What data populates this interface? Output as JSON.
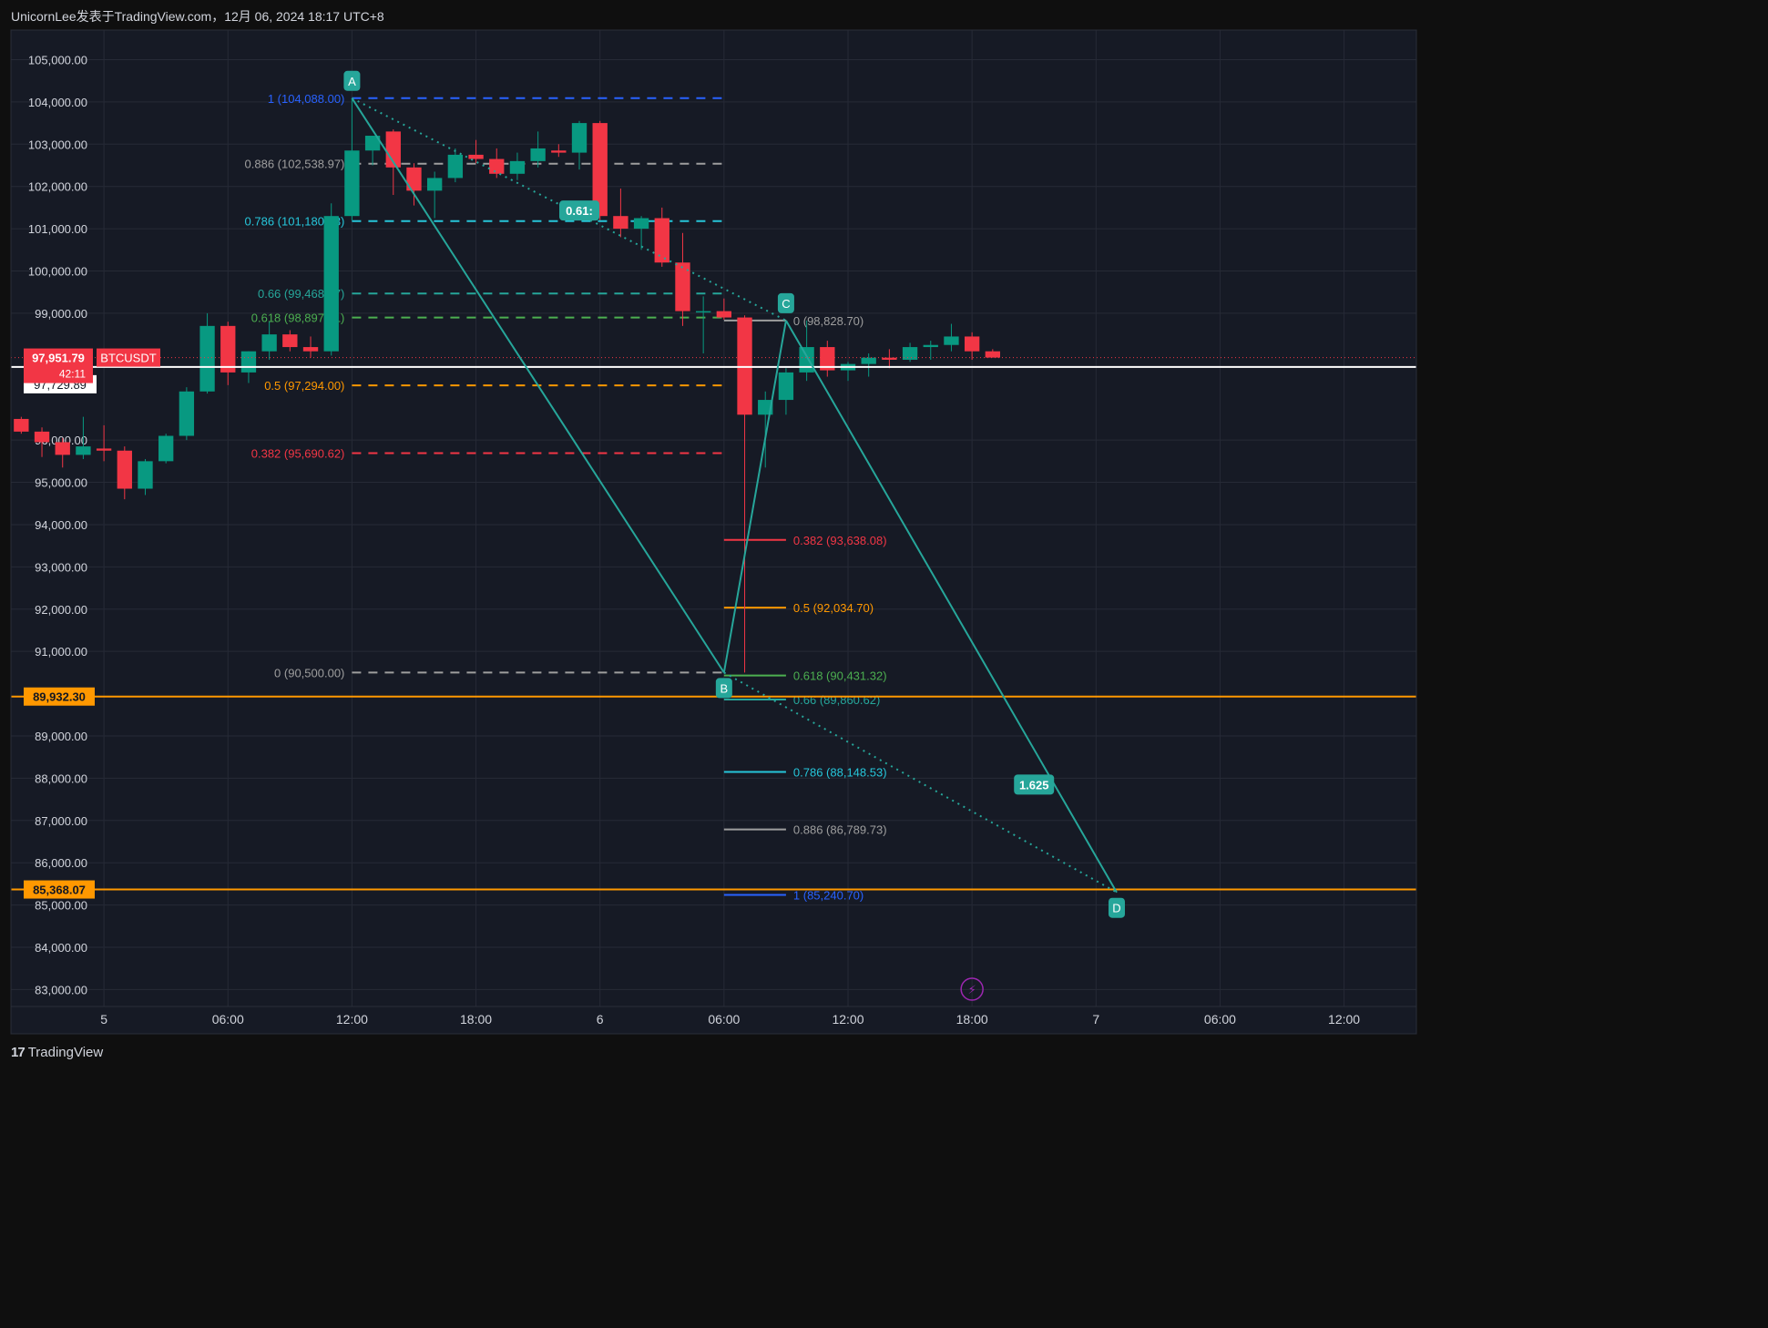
{
  "header": {
    "text": "UnicornLee发表于TradingView.com，12月 06, 2024 18:17 UTC+8"
  },
  "footer": {
    "brand": "TradingView",
    "logo_glyph": "17"
  },
  "colors": {
    "background": "#161a25",
    "grid": "#262a36",
    "up": "#089981",
    "down": "#f23645",
    "pattern": "#26a69a",
    "axis_text": "#d1d4dc",
    "price_line": "#ffffff",
    "horizontal_line": "#ff9800"
  },
  "chart_data": {
    "type": "candlestick",
    "symbol": "BTCUSDT",
    "y_ticks": [
      105000,
      104000,
      103000,
      102000,
      101000,
      100000,
      99000,
      96000,
      95000,
      94000,
      93000,
      92000,
      91000,
      89000,
      88000,
      87000,
      86000,
      85000,
      84000,
      83000
    ],
    "y_tick_labels": [
      "105,000.00",
      "104,000.00",
      "103,000.00",
      "102,000.00",
      "101,000.00",
      "100,000.00",
      "99,000.00",
      "96,000.00",
      "95,000.00",
      "94,000.00",
      "93,000.00",
      "92,000.00",
      "91,000.00",
      "89,000.00",
      "88,000.00",
      "87,000.00",
      "86,000.00",
      "85,000.00",
      "84,000.00",
      "83,000.00"
    ],
    "ylim": [
      82600,
      105700
    ],
    "x_ticks": [
      {
        "label": "5",
        "time": "2024-12-05 00:00"
      },
      {
        "label": "06:00",
        "time": "2024-12-05 06:00"
      },
      {
        "label": "12:00",
        "time": "2024-12-05 12:00"
      },
      {
        "label": "18:00",
        "time": "2024-12-05 18:00"
      },
      {
        "label": "6",
        "time": "2024-12-06 00:00"
      },
      {
        "label": "06:00",
        "time": "2024-12-06 06:00"
      },
      {
        "label": "12:00",
        "time": "2024-12-06 12:00"
      },
      {
        "label": "18:00",
        "time": "2024-12-06 18:00"
      },
      {
        "label": "7",
        "time": "2024-12-07 00:00"
      },
      {
        "label": "06:00",
        "time": "2024-12-07 06:00"
      },
      {
        "label": "12:00",
        "time": "2024-12-07 12:00"
      }
    ],
    "xlim": [
      "2024-12-04 19:30",
      "2024-12-07 15:30"
    ],
    "candle_interval_hours": 1,
    "candles": [
      {
        "t": "2024-12-04 20:00",
        "o": 96500,
        "h": 96550,
        "l": 96150,
        "c": 96200
      },
      {
        "t": "2024-12-04 21:00",
        "o": 96200,
        "h": 96300,
        "l": 95600,
        "c": 95950
      },
      {
        "t": "2024-12-04 22:00",
        "o": 95950,
        "h": 96050,
        "l": 95350,
        "c": 95650
      },
      {
        "t": "2024-12-04 23:00",
        "o": 95650,
        "h": 96550,
        "l": 95550,
        "c": 95850
      },
      {
        "t": "2024-12-05 00:00",
        "o": 95800,
        "h": 96350,
        "l": 95500,
        "c": 95750
      },
      {
        "t": "2024-12-05 01:00",
        "o": 95750,
        "h": 95850,
        "l": 94600,
        "c": 94850
      },
      {
        "t": "2024-12-05 02:00",
        "o": 94850,
        "h": 95550,
        "l": 94700,
        "c": 95500
      },
      {
        "t": "2024-12-05 03:00",
        "o": 95500,
        "h": 96150,
        "l": 95450,
        "c": 96100
      },
      {
        "t": "2024-12-05 04:00",
        "o": 96100,
        "h": 97250,
        "l": 96000,
        "c": 97150
      },
      {
        "t": "2024-12-05 05:00",
        "o": 97150,
        "h": 99000,
        "l": 97100,
        "c": 98700
      },
      {
        "t": "2024-12-05 06:00",
        "o": 98700,
        "h": 98800,
        "l": 97300,
        "c": 97600
      },
      {
        "t": "2024-12-05 07:00",
        "o": 97600,
        "h": 98100,
        "l": 97350,
        "c": 98100
      },
      {
        "t": "2024-12-05 08:00",
        "o": 98100,
        "h": 98800,
        "l": 97900,
        "c": 98500
      },
      {
        "t": "2024-12-05 09:00",
        "o": 98500,
        "h": 98600,
        "l": 98100,
        "c": 98200
      },
      {
        "t": "2024-12-05 10:00",
        "o": 98200,
        "h": 98450,
        "l": 97950,
        "c": 98100
      },
      {
        "t": "2024-12-05 11:00",
        "o": 98100,
        "h": 101600,
        "l": 98000,
        "c": 101300
      },
      {
        "t": "2024-12-05 12:00",
        "o": 101300,
        "h": 104088,
        "l": 101200,
        "c": 102850
      },
      {
        "t": "2024-12-05 13:00",
        "o": 102850,
        "h": 103200,
        "l": 102500,
        "c": 103200
      },
      {
        "t": "2024-12-05 14:00",
        "o": 103300,
        "h": 103350,
        "l": 101800,
        "c": 102450
      },
      {
        "t": "2024-12-05 15:00",
        "o": 102450,
        "h": 102550,
        "l": 101550,
        "c": 101900
      },
      {
        "t": "2024-12-05 16:00",
        "o": 101900,
        "h": 102350,
        "l": 101250,
        "c": 102200
      },
      {
        "t": "2024-12-05 17:00",
        "o": 102200,
        "h": 102900,
        "l": 102100,
        "c": 102750
      },
      {
        "t": "2024-12-05 18:00",
        "o": 102750,
        "h": 103100,
        "l": 102550,
        "c": 102650
      },
      {
        "t": "2024-12-05 19:00",
        "o": 102650,
        "h": 102900,
        "l": 102200,
        "c": 102300
      },
      {
        "t": "2024-12-05 20:00",
        "o": 102300,
        "h": 102800,
        "l": 102150,
        "c": 102600
      },
      {
        "t": "2024-12-05 21:00",
        "o": 102600,
        "h": 103300,
        "l": 102450,
        "c": 102900
      },
      {
        "t": "2024-12-05 22:00",
        "o": 102850,
        "h": 103000,
        "l": 102700,
        "c": 102800
      },
      {
        "t": "2024-12-05 23:00",
        "o": 102800,
        "h": 103550,
        "l": 102400,
        "c": 103500
      },
      {
        "t": "2024-12-06 00:00",
        "o": 103500,
        "h": 103550,
        "l": 101200,
        "c": 101300
      },
      {
        "t": "2024-12-06 01:00",
        "o": 101300,
        "h": 101950,
        "l": 100800,
        "c": 101000
      },
      {
        "t": "2024-12-06 02:00",
        "o": 101000,
        "h": 101300,
        "l": 100500,
        "c": 101250
      },
      {
        "t": "2024-12-06 03:00",
        "o": 101250,
        "h": 101500,
        "l": 100100,
        "c": 100200
      },
      {
        "t": "2024-12-06 04:00",
        "o": 100200,
        "h": 100900,
        "l": 98700,
        "c": 99050
      },
      {
        "t": "2024-12-06 05:00",
        "o": 99050,
        "h": 99400,
        "l": 98050,
        "c": 99050
      },
      {
        "t": "2024-12-06 06:00",
        "o": 99050,
        "h": 99350,
        "l": 98850,
        "c": 98900
      },
      {
        "t": "2024-12-06 07:00",
        "o": 98900,
        "h": 98950,
        "l": 90500,
        "c": 96600
      },
      {
        "t": "2024-12-06 08:00",
        "o": 96600,
        "h": 97150,
        "l": 95350,
        "c": 96950
      },
      {
        "t": "2024-12-06 09:00",
        "o": 96950,
        "h": 97700,
        "l": 96600,
        "c": 97600
      },
      {
        "t": "2024-12-06 10:00",
        "o": 97600,
        "h": 98828.7,
        "l": 97400,
        "c": 98200
      },
      {
        "t": "2024-12-06 11:00",
        "o": 98200,
        "h": 98350,
        "l": 97500,
        "c": 97650
      },
      {
        "t": "2024-12-06 12:00",
        "o": 97650,
        "h": 97850,
        "l": 97400,
        "c": 97800
      },
      {
        "t": "2024-12-06 13:00",
        "o": 97800,
        "h": 98050,
        "l": 97500,
        "c": 97950
      },
      {
        "t": "2024-12-06 14:00",
        "o": 97950,
        "h": 98150,
        "l": 97700,
        "c": 97900
      },
      {
        "t": "2024-12-06 15:00",
        "o": 97900,
        "h": 98300,
        "l": 97850,
        "c": 98200
      },
      {
        "t": "2024-12-06 16:00",
        "o": 98200,
        "h": 98350,
        "l": 97900,
        "c": 98250
      },
      {
        "t": "2024-12-06 17:00",
        "o": 98250,
        "h": 98750,
        "l": 98100,
        "c": 98450
      },
      {
        "t": "2024-12-06 18:00",
        "o": 98450,
        "h": 98550,
        "l": 97900,
        "c": 98100
      },
      {
        "t": "2024-12-06 19:00",
        "o": 98100,
        "h": 98150,
        "l": 97950,
        "c": 97952
      }
    ],
    "current_price": {
      "symbol": "BTCUSDT",
      "price": 97951.79,
      "price_label": "97,951.79",
      "countdown": "42:11"
    },
    "price_line": {
      "price": 97729.89,
      "label": "97,729.89"
    },
    "horizontal_lines": [
      {
        "price": 89932.3,
        "label": "89,932.30"
      },
      {
        "price": 85368.07,
        "label": "85,368.07"
      }
    ],
    "pattern_points": [
      {
        "label": "A",
        "t": "2024-12-05 12:00",
        "price": 104088
      },
      {
        "label": "B",
        "t": "2024-12-06 06:00",
        "price": 90500
      },
      {
        "label": "C",
        "t": "2024-12-06 09:00",
        "price": 98828.7
      },
      {
        "label": "D",
        "t": "2024-12-07 01:00",
        "price": 85300
      }
    ],
    "pattern_ratios": [
      {
        "label": "0.61:",
        "t": "2024-12-05 23:00",
        "price": 101430
      },
      {
        "label": "1.625",
        "t": "2024-12-06 21:00",
        "price": 87850
      }
    ],
    "fib_sets": [
      {
        "t_start": "2024-12-05 12:00",
        "t_end": "2024-12-06 06:00",
        "label_anchor": "left",
        "levels": [
          {
            "text": "1 (104,088.00)",
            "price": 104088,
            "color": "#2962ff"
          },
          {
            "text": "0.886 (102,538.97)",
            "price": 102538.97,
            "color": "#9e9e9e"
          },
          {
            "text": "0.786 (101,180.63)",
            "price": 101180.63,
            "color": "#26c6da"
          },
          {
            "text": "0.66 (99,468.17)",
            "price": 99468.17,
            "color": "#26a69a"
          },
          {
            "text": "0.618 (98,897.41)",
            "price": 98897.41,
            "color": "#4caf50"
          },
          {
            "text": "0.5 (97,294.00)",
            "price": 97294,
            "color": "#ff9800"
          },
          {
            "text": "0.382 (95,690.62)",
            "price": 95690.62,
            "color": "#f23645"
          },
          {
            "text": "0 (90,500.00)",
            "price": 90500,
            "color": "#9e9e9e"
          }
        ]
      },
      {
        "t_start": "2024-12-06 06:00",
        "t_end": "2024-12-06 09:00",
        "label_anchor": "right",
        "levels": [
          {
            "text": "0 (98,828.70)",
            "price": 98828.7,
            "color": "#9e9e9e"
          },
          {
            "text": "0.382 (93,638.08)",
            "price": 93638.08,
            "color": "#f23645"
          },
          {
            "text": "0.5 (92,034.70)",
            "price": 92034.7,
            "color": "#ff9800"
          },
          {
            "text": "0.618 (90,431.32)",
            "price": 90431.32,
            "color": "#4caf50"
          },
          {
            "text": "0.66 (89,860.62)",
            "price": 89860.62,
            "color": "#26a69a"
          },
          {
            "text": "0.786 (88,148.53)",
            "price": 88148.53,
            "color": "#26c6da"
          },
          {
            "text": "0.886 (86,789.73)",
            "price": 86789.73,
            "color": "#9e9e9e"
          },
          {
            "text": "1 (85,240.70)",
            "price": 85240.7,
            "color": "#2962ff"
          }
        ]
      }
    ],
    "event_marker": {
      "icon": "lightning-icon",
      "t": "2024-12-06 18:00",
      "glyph": "⚡",
      "color": "#9c27b0"
    }
  }
}
